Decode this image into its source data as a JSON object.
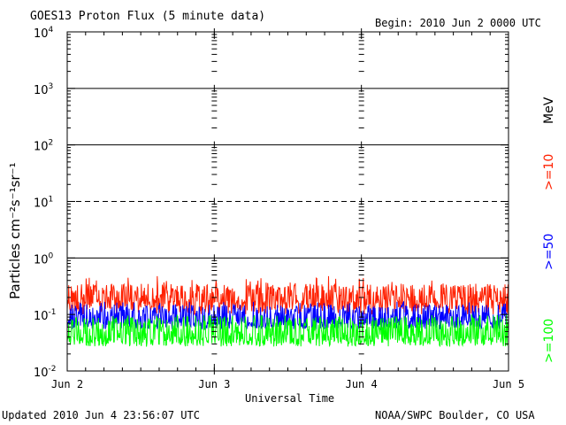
{
  "header": {
    "title": "GOES13 Proton Flux (5 minute data)",
    "begin": "Begin: 2010 Jun 2 0000 UTC"
  },
  "footer": {
    "updated": "Updated 2010 Jun  4 23:56:07 UTC",
    "source": "NOAA/SWPC Boulder, CO USA"
  },
  "chart_data": {
    "type": "line",
    "title": "GOES13 Proton Flux (5 minute data)",
    "xlabel": "Universal Time",
    "ylabel": "Particles cm⁻²s⁻¹sr⁻¹",
    "yscale": "log",
    "ylim": [
      0.01,
      10000
    ],
    "xlim": [
      "2010-06-02 00:00",
      "2010-06-05 00:00"
    ],
    "x_ticks": [
      "Jun 2",
      "Jun 3",
      "Jun 4",
      "Jun 5"
    ],
    "y_ticks": [
      {
        "base": "10",
        "exp": "-2",
        "value": 0.01
      },
      {
        "base": "10",
        "exp": "-1",
        "value": 0.1
      },
      {
        "base": "10",
        "exp": "0",
        "value": 1
      },
      {
        "base": "10",
        "exp": "1",
        "value": 10
      },
      {
        "base": "10",
        "exp": "2",
        "value": 100
      },
      {
        "base": "10",
        "exp": "3",
        "value": 1000
      },
      {
        "base": "10",
        "exp": "4",
        "value": 10000
      }
    ],
    "threshold_lines": [
      {
        "value": 10,
        "style": "dashed"
      }
    ],
    "reference_lines": [
      {
        "value": 1,
        "style": "solid"
      },
      {
        "value": 100,
        "style": "solid"
      },
      {
        "value": 1000,
        "style": "solid"
      }
    ],
    "legend_unit": "MeV",
    "series": [
      {
        "name": ">=10",
        "color": "#ff2000",
        "baseline": 0.18,
        "low": 0.1,
        "high": 0.35,
        "peak": 0.5
      },
      {
        "name": ">=50",
        "color": "#0000ff",
        "baseline": 0.075,
        "low": 0.055,
        "high": 0.15,
        "peak": 0.17
      },
      {
        "name": ">=100",
        "color": "#00ff00",
        "baseline": 0.04,
        "low": 0.027,
        "high": 0.09,
        "peak": 0.1
      }
    ]
  }
}
